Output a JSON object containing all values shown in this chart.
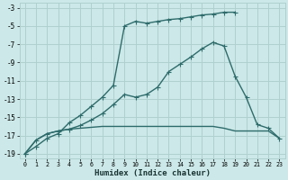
{
  "xlabel": "Humidex (Indice chaleur)",
  "bg_color": "#cce8e8",
  "grid_color": "#b0d0d0",
  "line_color": "#2e6b6b",
  "xlim": [
    -0.5,
    23.5
  ],
  "ylim": [
    -19.5,
    -2.5
  ],
  "xticks": [
    0,
    1,
    2,
    3,
    4,
    5,
    6,
    7,
    8,
    9,
    10,
    11,
    12,
    13,
    14,
    15,
    16,
    17,
    18,
    19,
    20,
    21,
    22,
    23
  ],
  "yticks": [
    -19,
    -17,
    -15,
    -13,
    -11,
    -9,
    -7,
    -5,
    -3
  ],
  "line1_x": [
    0,
    1,
    2,
    3,
    4,
    5,
    6,
    7,
    8,
    9,
    10,
    11,
    12,
    13,
    14,
    15,
    16,
    17,
    18,
    19
  ],
  "line1_y": [
    -19,
    -18.2,
    -17.3,
    -16.8,
    -15.6,
    -14.8,
    -13.8,
    -12.8,
    -11.5,
    -5.0,
    -4.5,
    -4.7,
    -4.5,
    -4.3,
    -4.2,
    -4.0,
    -3.8,
    -3.7,
    -3.5,
    -3.5
  ],
  "line2_x": [
    0,
    1,
    2,
    3,
    4,
    5,
    6,
    7,
    8,
    9,
    10,
    11,
    12,
    13,
    14,
    15,
    16,
    17,
    18,
    19,
    20,
    21,
    22,
    23
  ],
  "line2_y": [
    -19,
    -17.5,
    -16.8,
    -16.5,
    -16.3,
    -16.2,
    -16.1,
    -16.0,
    -16.0,
    -16.0,
    -16.0,
    -16.0,
    -16.0,
    -16.0,
    -16.0,
    -16.0,
    -16.0,
    -16.0,
    -16.2,
    -16.5,
    -16.5,
    -16.5,
    -16.5,
    -17.3
  ],
  "line3_x": [
    0,
    1,
    2,
    3,
    4,
    5,
    6,
    7,
    8,
    9,
    10,
    11,
    12,
    13,
    14,
    15,
    16,
    17,
    18,
    19,
    20,
    21,
    22,
    23
  ],
  "line3_y": [
    -19,
    -17.5,
    -16.8,
    -16.5,
    -16.3,
    -15.9,
    -15.3,
    -14.6,
    -13.6,
    -12.5,
    -12.8,
    -12.5,
    -11.7,
    -10.0,
    -9.2,
    -8.4,
    -7.5,
    -6.8,
    -7.2,
    -10.5,
    -12.8,
    -15.8,
    -16.2,
    -17.3
  ],
  "linewidth": 1.0,
  "markersize": 2.0
}
